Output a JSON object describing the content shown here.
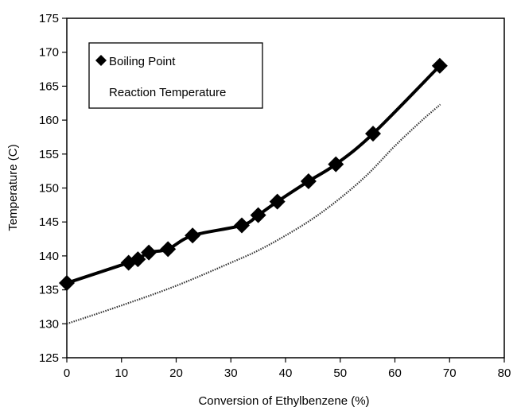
{
  "chart_data": {
    "type": "line",
    "xlabel": "Conversion of Ethylbenzene (%)",
    "ylabel": "Temperature (C)",
    "xlim": [
      0,
      80
    ],
    "ylim": [
      125,
      175
    ],
    "xticks": [
      0,
      10,
      20,
      30,
      40,
      50,
      60,
      70,
      80
    ],
    "yticks": [
      125,
      130,
      135,
      140,
      145,
      150,
      155,
      160,
      165,
      170,
      175
    ],
    "grid": false,
    "legend_position": "top-left",
    "series": [
      {
        "name": "Boiling Point",
        "style": "solid-line-with-diamond-markers",
        "color": "#000000",
        "x": [
          0,
          11.3,
          13,
          15,
          18.5,
          23,
          32,
          35,
          38.5,
          44.2,
          49.2,
          56,
          68.2
        ],
        "y": [
          136,
          139,
          139.5,
          140.5,
          141,
          143,
          144.5,
          146,
          148,
          151,
          153.5,
          158,
          168
        ]
      },
      {
        "name": "Reaction Temperature",
        "style": "dotted-line",
        "color": "#333333",
        "x": [
          0,
          10,
          20,
          30,
          35,
          40,
          45,
          50,
          55,
          60,
          65,
          68.3
        ],
        "y": [
          130,
          132.7,
          135.6,
          139,
          140.8,
          143,
          145.5,
          148.5,
          152,
          156.2,
          160,
          162.3
        ]
      }
    ]
  }
}
